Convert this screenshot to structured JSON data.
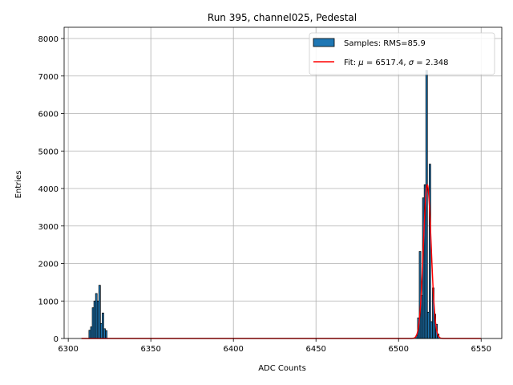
{
  "chart_data": {
    "type": "bar",
    "title": "Run 395, channel025, Pedestal",
    "xlabel": "ADC Counts",
    "ylabel": "Entries",
    "xlim": [
      6297.5,
      6562.5
    ],
    "ylim": [
      0,
      8300
    ],
    "xticks": [
      6300,
      6350,
      6400,
      6450,
      6500,
      6550
    ],
    "yticks": [
      0,
      1000,
      2000,
      3000,
      4000,
      5000,
      6000,
      7000,
      8000
    ],
    "grid": true,
    "legend_position": "top-right",
    "colors": {
      "bars": "#1f77b4",
      "fit": "#ff0000",
      "grid": "#b0b0b0"
    },
    "series": [
      {
        "name": "Samples: RMS=85.9",
        "kind": "histogram",
        "bin_width": 1,
        "bins": [
          {
            "x": 6313,
            "count": 220
          },
          {
            "x": 6314,
            "count": 310
          },
          {
            "x": 6315,
            "count": 820
          },
          {
            "x": 6316,
            "count": 1000
          },
          {
            "x": 6317,
            "count": 1200
          },
          {
            "x": 6318,
            "count": 1000
          },
          {
            "x": 6319,
            "count": 1420
          },
          {
            "x": 6320,
            "count": 400
          },
          {
            "x": 6321,
            "count": 680
          },
          {
            "x": 6322,
            "count": 260
          },
          {
            "x": 6323,
            "count": 210
          },
          {
            "x": 6511,
            "count": 80
          },
          {
            "x": 6512,
            "count": 550
          },
          {
            "x": 6513,
            "count": 2320
          },
          {
            "x": 6514,
            "count": 1150
          },
          {
            "x": 6515,
            "count": 3750
          },
          {
            "x": 6516,
            "count": 4100
          },
          {
            "x": 6517,
            "count": 7150
          },
          {
            "x": 6518,
            "count": 700
          },
          {
            "x": 6519,
            "count": 4650
          },
          {
            "x": 6520,
            "count": 450
          },
          {
            "x": 6521,
            "count": 1350
          },
          {
            "x": 6522,
            "count": 650
          },
          {
            "x": 6523,
            "count": 380
          },
          {
            "x": 6524,
            "count": 120
          }
        ]
      },
      {
        "name": "Fit: μ = 6517.4, σ = 2.348",
        "kind": "gaussian-fit",
        "mu": 6517.4,
        "sigma": 2.348,
        "amplitude": 4100,
        "x_range": [
          6308,
          6550
        ]
      }
    ],
    "legend": [
      {
        "label_prefix": "Samples: RMS=85.9",
        "marker": "patch"
      },
      {
        "label_prefix": "Fit: ",
        "mu_symbol": "μ",
        "mu_text": " = 6517.4, ",
        "sigma_symbol": "σ",
        "sigma_text": " = 2.348",
        "marker": "line"
      }
    ]
  }
}
